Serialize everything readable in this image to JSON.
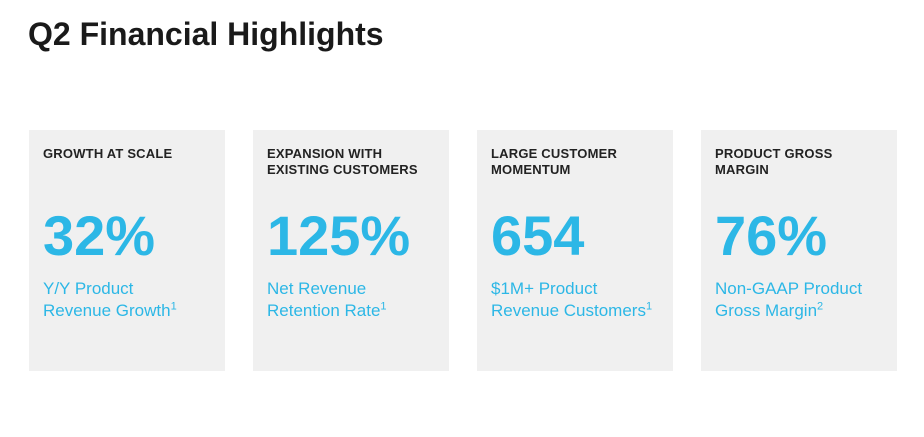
{
  "title": "Q2 Financial Highlights",
  "cards": [
    {
      "heading_line1": "GROWTH AT SCALE",
      "heading_line2": "",
      "value": "32%",
      "desc_line1": "Y/Y Product",
      "desc_line2": "Revenue Growth",
      "footnote": "1"
    },
    {
      "heading_line1": "EXPANSION WITH",
      "heading_line2": "EXISTING CUSTOMERS",
      "value": "125%",
      "desc_line1": "Net Revenue",
      "desc_line2": "Retention Rate",
      "footnote": "1"
    },
    {
      "heading_line1": "LARGE CUSTOMER",
      "heading_line2": "MOMENTUM",
      "value": "654",
      "desc_line1": "$1M+ Product",
      "desc_line2": "Revenue Customers",
      "footnote": "1"
    },
    {
      "heading_line1": "PRODUCT GROSS",
      "heading_line2": "MARGIN",
      "value": "76%",
      "desc_line1": "Non-GAAP Product",
      "desc_line2": "Gross Margin",
      "footnote": "2"
    }
  ],
  "colors": {
    "accent": "#2cb7e6",
    "card_background": "#f0f0f0",
    "heading_text": "#222222"
  }
}
